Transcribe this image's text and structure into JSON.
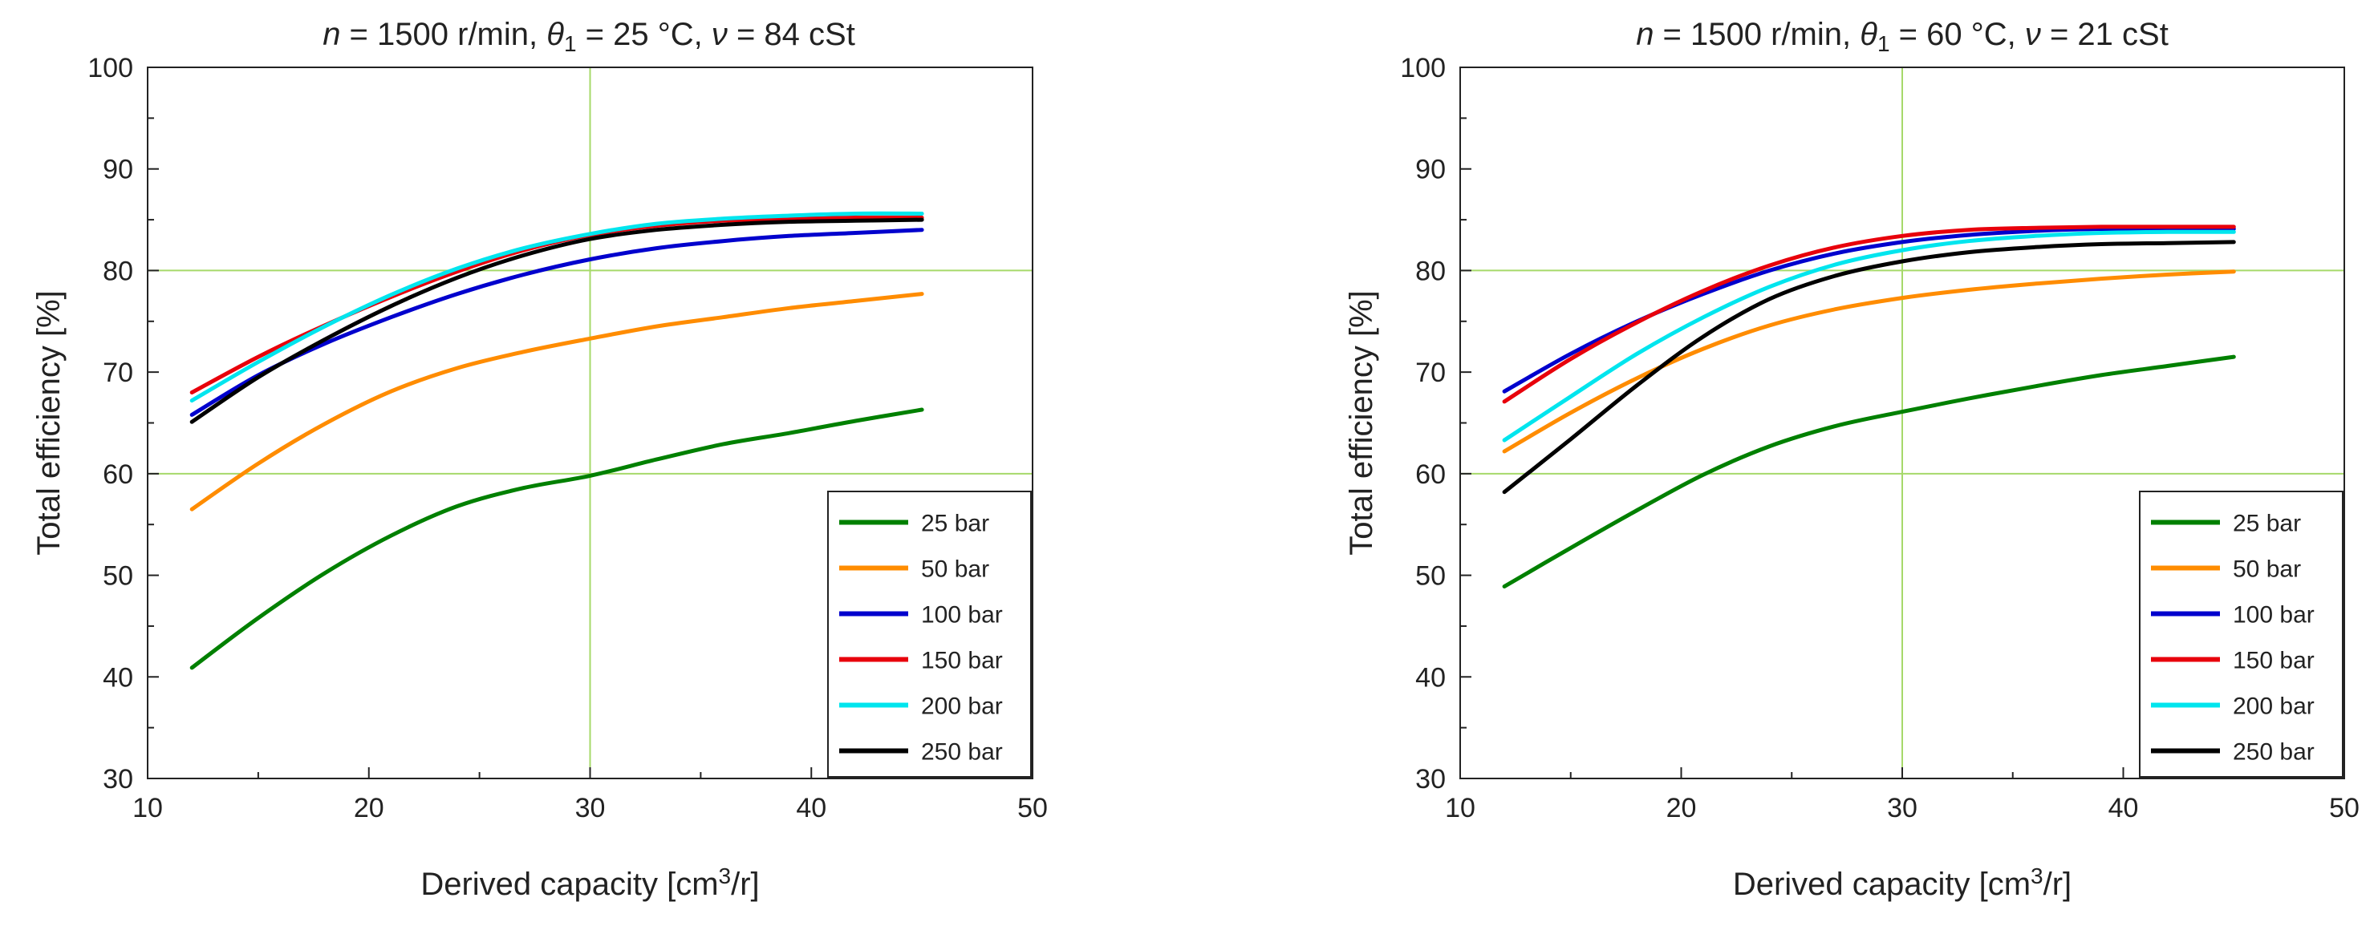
{
  "chart_data": [
    {
      "type": "line",
      "title_parts": {
        "n_sym": "n",
        "n_val": " = 1500 r/min, ",
        "theta_sym": "θ",
        "theta_sub": "1",
        "theta_val": " = 25 °C, ",
        "nu_sym": "ν",
        "nu_val": " = 84 cSt"
      },
      "xlabel_parts": {
        "main": "Derived capacity [cm",
        "sup": "3",
        "tail": "/r]"
      },
      "ylabel": "Total efficiency [%]",
      "xlim": [
        10,
        50
      ],
      "ylim": [
        30,
        100
      ],
      "x_ticks": [
        10,
        20,
        30,
        40,
        50
      ],
      "y_ticks": [
        30,
        40,
        50,
        60,
        70,
        80,
        90,
        100
      ],
      "grid_major_x": [
        30
      ],
      "grid_major_y": [
        60,
        80
      ],
      "grid_color": "#a6d96a",
      "legend_position": "bottom-right",
      "x": [
        12,
        15,
        18,
        21,
        24,
        27,
        30,
        33,
        36,
        39,
        42,
        45
      ],
      "series": [
        {
          "name": "25 bar",
          "color": "#008000",
          "values": [
            40.9,
            45.8,
            50.2,
            53.9,
            56.8,
            58.6,
            59.8,
            61.4,
            62.9,
            64.0,
            65.2,
            66.3
          ]
        },
        {
          "name": "50 bar",
          "color": "#ff8c00",
          "values": [
            56.5,
            61.0,
            64.9,
            68.1,
            70.4,
            72.0,
            73.3,
            74.5,
            75.4,
            76.3,
            77.0,
            77.7
          ]
        },
        {
          "name": "100 bar",
          "color": "#0000cd",
          "values": [
            65.8,
            69.7,
            72.8,
            75.4,
            77.7,
            79.6,
            81.1,
            82.2,
            82.9,
            83.4,
            83.7,
            84.0
          ]
        },
        {
          "name": "150 bar",
          "color": "#e8000b",
          "values": [
            68.0,
            71.5,
            74.6,
            77.4,
            79.9,
            82.0,
            83.5,
            84.4,
            84.9,
            85.1,
            85.2,
            85.2
          ]
        },
        {
          "name": "200 bar",
          "color": "#00e5ee",
          "values": [
            67.2,
            71.0,
            74.5,
            77.6,
            80.2,
            82.2,
            83.6,
            84.6,
            85.1,
            85.4,
            85.6,
            85.6
          ]
        },
        {
          "name": "250 bar",
          "color": "#000000",
          "values": [
            65.1,
            69.5,
            73.2,
            76.5,
            79.3,
            81.5,
            83.1,
            84.0,
            84.5,
            84.8,
            84.9,
            85.0
          ]
        }
      ]
    },
    {
      "type": "line",
      "title_parts": {
        "n_sym": "n",
        "n_val": " = 1500 r/min, ",
        "theta_sym": "θ",
        "theta_sub": "1",
        "theta_val": " = 60 °C, ",
        "nu_sym": "ν",
        "nu_val": " = 21 cSt"
      },
      "xlabel_parts": {
        "main": "Derived capacity [cm",
        "sup": "3",
        "tail": "/r]"
      },
      "ylabel": "Total efficiency [%]",
      "xlim": [
        10,
        50
      ],
      "ylim": [
        30,
        100
      ],
      "x_ticks": [
        10,
        20,
        30,
        40,
        50
      ],
      "y_ticks": [
        30,
        40,
        50,
        60,
        70,
        80,
        90,
        100
      ],
      "grid_major_x": [
        30
      ],
      "grid_major_y": [
        60,
        80
      ],
      "grid_color": "#a6d96a",
      "legend_position": "bottom-right",
      "x": [
        12,
        15,
        18,
        21,
        24,
        27,
        30,
        33,
        36,
        39,
        42,
        45
      ],
      "series": [
        {
          "name": "25 bar",
          "color": "#008000",
          "values": [
            48.9,
            52.7,
            56.4,
            59.9,
            62.7,
            64.7,
            66.1,
            67.4,
            68.6,
            69.7,
            70.6,
            71.5
          ]
        },
        {
          "name": "50 bar",
          "color": "#ff8c00",
          "values": [
            62.2,
            66.0,
            69.4,
            72.3,
            74.6,
            76.2,
            77.3,
            78.1,
            78.7,
            79.2,
            79.6,
            79.9
          ]
        },
        {
          "name": "100 bar",
          "color": "#0000cd",
          "values": [
            68.1,
            71.8,
            75.0,
            77.7,
            80.0,
            81.7,
            82.8,
            83.5,
            83.9,
            84.1,
            84.1,
            84.1
          ]
        },
        {
          "name": "150 bar",
          "color": "#e8000b",
          "values": [
            67.1,
            71.3,
            74.9,
            78.0,
            80.5,
            82.3,
            83.4,
            84.0,
            84.2,
            84.3,
            84.3,
            84.3
          ]
        },
        {
          "name": "200 bar",
          "color": "#00e5ee",
          "values": [
            63.3,
            67.6,
            71.8,
            75.4,
            78.4,
            80.6,
            82.0,
            82.9,
            83.4,
            83.7,
            83.8,
            83.8
          ]
        },
        {
          "name": "250 bar",
          "color": "#000000",
          "values": [
            58.2,
            63.4,
            68.7,
            73.5,
            77.2,
            79.5,
            80.9,
            81.8,
            82.3,
            82.6,
            82.7,
            82.8
          ]
        }
      ]
    }
  ]
}
